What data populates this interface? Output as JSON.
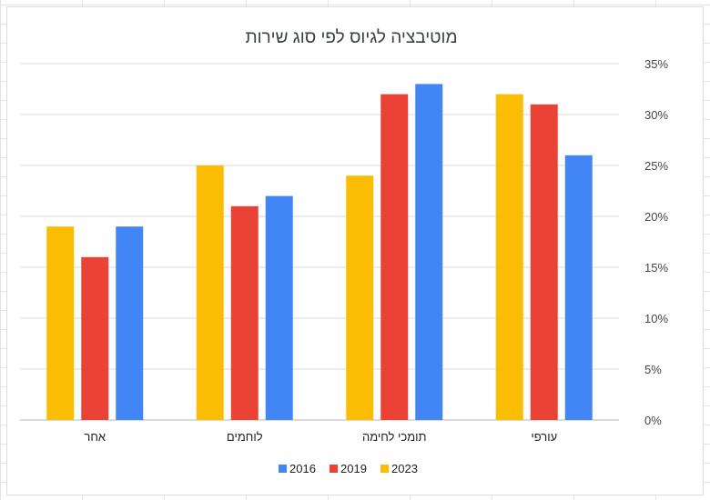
{
  "chart_data": {
    "type": "bar",
    "title": "מוטיבציה לגיוס לפי סוג שירות",
    "categories": [
      "עורפי",
      "תומכי לחימה",
      "לוחמים",
      "אחר"
    ],
    "series": [
      {
        "name": "2023",
        "color": "#fbbc04",
        "values": [
          32,
          24,
          25,
          19
        ]
      },
      {
        "name": "2019",
        "color": "#ea4335",
        "values": [
          31,
          32,
          21,
          16
        ]
      },
      {
        "name": "2016",
        "color": "#4285f4",
        "values": [
          26,
          33,
          22,
          19
        ]
      }
    ],
    "ylim": [
      0,
      35
    ],
    "yticks": [
      "0%",
      "5%",
      "10%",
      "15%",
      "20%",
      "25%",
      "30%",
      "35%"
    ],
    "ytick_values": [
      0,
      5,
      10,
      15,
      20,
      25,
      30,
      35
    ],
    "y_axis_side": "right",
    "x_order": "right-to-left",
    "grid": true,
    "legend_position": "bottom",
    "legend_order": [
      "2016",
      "2019",
      "2023"
    ]
  }
}
